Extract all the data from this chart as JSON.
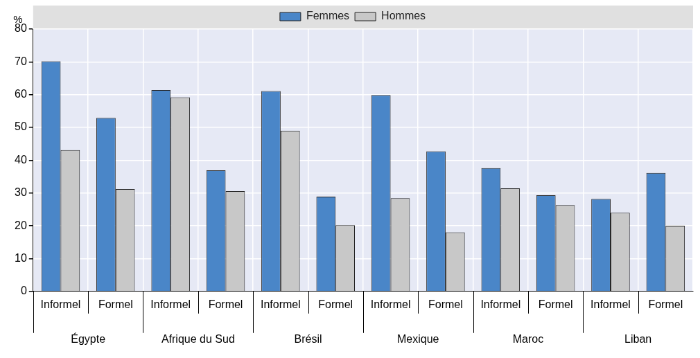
{
  "chart_data": {
    "type": "bar",
    "ylabel": "%",
    "categories": [
      "Informel",
      "Formel",
      "Informel",
      "Formel",
      "Informel",
      "Formel",
      "Informel",
      "Formel",
      "Informel",
      "Formel",
      "Informel",
      "Formel"
    ],
    "series": [
      {
        "name": "Femmes",
        "color": "#4a86c8",
        "values": [
          70.2,
          52.9,
          61.4,
          36.9,
          61.1,
          28.9,
          59.9,
          42.7,
          37.6,
          29.3,
          28.2,
          36.1
        ]
      },
      {
        "name": "Hommes",
        "color": "#c8c8c8",
        "values": [
          43.1,
          31.2,
          59.2,
          30.6,
          49.0,
          20.2,
          28.4,
          18.0,
          31.4,
          26.3,
          24.0,
          20.0
        ]
      }
    ],
    "annotations": [
      "Égypte",
      "Afrique du Sud",
      "Brésil",
      "Mexique",
      "Maroc",
      "Liban"
    ],
    "ylim": [
      0,
      80
    ],
    "yticks": [
      0,
      10,
      20,
      30,
      40,
      50,
      60,
      70,
      80
    ],
    "grid": true,
    "legend": "top"
  }
}
